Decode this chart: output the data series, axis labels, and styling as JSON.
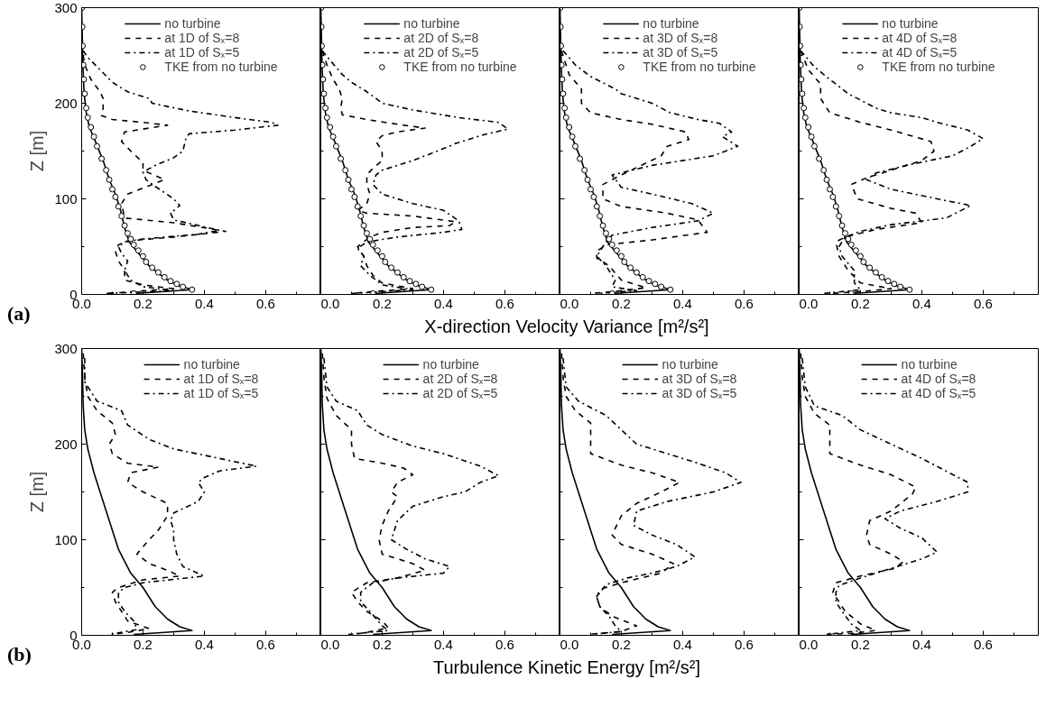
{
  "chart_data": [
    {
      "type": "line",
      "ylabel": "Z [m]",
      "annotations": [
        "(a)"
      ],
      "xlim": [
        0,
        0.78
      ],
      "ylim": [
        0,
        300
      ],
      "xticks": [
        {
          "value": 0,
          "label": "0.0"
        },
        {
          "value": 0.2,
          "label": "0.2"
        },
        {
          "value": 0.4,
          "label": "0.4"
        },
        {
          "value": 0.6,
          "label": "0.6"
        }
      ],
      "yticks": [
        0,
        100,
        200,
        300
      ],
      "legend": "top",
      "series": [
        {
          "name": "no turbine",
          "color": "#000000",
          "line_style": "solid",
          "x": [
            0.17,
            0.36,
            0.31,
            0.27,
            0.22,
            0.18,
            0.155,
            0.14,
            0.125,
            0.11,
            0.09,
            0.07,
            0.045,
            0.025,
            0.015,
            0.008,
            0.004,
            0.002,
            0
          ],
          "values": [
            1,
            5,
            10,
            17,
            30,
            45,
            55,
            70,
            90,
            105,
            120,
            140,
            160,
            175,
            190,
            210,
            240,
            270,
            300
          ]
        },
        {
          "name": "at 1D of Sₓ=8",
          "color": "#000000",
          "line_style": "dashed",
          "x": [
            0.005,
            0.01,
            0.03,
            0.06,
            0.07,
            0.07,
            0.065,
            0.1,
            0.2,
            0.28,
            0.2,
            0.14,
            0.13,
            0.16,
            0.2,
            0.2,
            0.27,
            0.15,
            0.13,
            0.14,
            0.3,
            0.47,
            0.3,
            0.15,
            0.12,
            0.11,
            0.12,
            0.14,
            0.14,
            0.2,
            0.3,
            0.17,
            0.08
          ],
          "values": [
            250,
            240,
            225,
            212,
            205,
            195,
            187,
            183,
            180,
            177,
            173,
            170,
            160,
            150,
            138,
            130,
            120,
            105,
            95,
            80,
            75,
            66,
            60,
            56,
            52,
            45,
            35,
            25,
            15,
            10,
            6,
            3,
            1
          ]
        },
        {
          "name": "at 1D of Sₓ=5",
          "color": "#000000",
          "line_style": "dashdot",
          "x": [
            0.005,
            0.02,
            0.06,
            0.1,
            0.15,
            0.22,
            0.23,
            0.35,
            0.5,
            0.62,
            0.64,
            0.5,
            0.35,
            0.34,
            0.33,
            0.3,
            0.24,
            0.2,
            0.21,
            0.24,
            0.3,
            0.32,
            0.29,
            0.3,
            0.45,
            0.38,
            0.2,
            0.14,
            0.12,
            0.13,
            0.15,
            0.14,
            0.16,
            0.2,
            0.3,
            0.08
          ],
          "values": [
            255,
            248,
            235,
            222,
            212,
            205,
            200,
            192,
            185,
            180,
            177,
            172,
            168,
            163,
            150,
            143,
            135,
            128,
            120,
            113,
            100,
            93,
            85,
            78,
            67,
            63,
            58,
            55,
            50,
            43,
            35,
            25,
            15,
            8,
            4,
            1
          ]
        },
        {
          "name": "TKE from no turbine",
          "color": "#000000",
          "type": "scatter",
          "marker": "circle",
          "x": [
            0.17,
            0.36,
            0.33,
            0.31,
            0.29,
            0.27,
            0.25,
            0.23,
            0.21,
            0.2,
            0.185,
            0.17,
            0.16,
            0.15,
            0.14,
            0.13,
            0.12,
            0.11,
            0.1,
            0.09,
            0.08,
            0.065,
            0.05,
            0.04,
            0.03,
            0.02,
            0.015,
            0.01,
            0.007,
            0.005,
            0.003,
            0.002,
            0.001
          ],
          "values": [
            1,
            5,
            8,
            11,
            14,
            18,
            23,
            28,
            34,
            40,
            46,
            52,
            58,
            64,
            72,
            82,
            92,
            102,
            110,
            120,
            130,
            142,
            155,
            165,
            175,
            185,
            195,
            210,
            225,
            240,
            260,
            280,
            300
          ]
        }
      ]
    },
    {
      "type": "line",
      "tick_labels": "x",
      "xlim": [
        0,
        0.78
      ],
      "ylim": [
        0,
        300
      ],
      "xticks": [
        {
          "value": 0,
          "label": "0.0"
        },
        {
          "value": 0.2,
          "label": "0.2"
        },
        {
          "value": 0.4,
          "label": "0.4"
        },
        {
          "value": 0.6,
          "label": "0.6"
        }
      ],
      "yticks": [
        0,
        100,
        200,
        300
      ],
      "legend": "top",
      "series": [
        {
          "name": "no turbine",
          "color": "#000000",
          "line_style": "solid",
          "x": [
            0.17,
            0.36,
            0.31,
            0.27,
            0.22,
            0.18,
            0.155,
            0.14,
            0.125,
            0.11,
            0.09,
            0.07,
            0.045,
            0.025,
            0.015,
            0.008,
            0.004,
            0.002,
            0
          ],
          "values": [
            1,
            5,
            10,
            17,
            30,
            45,
            55,
            70,
            90,
            105,
            120,
            140,
            160,
            175,
            190,
            210,
            240,
            270,
            300
          ]
        },
        {
          "name": "at 2D of Sₓ=8",
          "color": "#000000",
          "line_style": "dashed",
          "x": [
            0.005,
            0.02,
            0.04,
            0.06,
            0.07,
            0.065,
            0.07,
            0.15,
            0.25,
            0.34,
            0.25,
            0.2,
            0.18,
            0.2,
            0.2,
            0.17,
            0.15,
            0.15,
            0.16,
            0.15,
            0.12,
            0.15,
            0.3,
            0.44,
            0.42,
            0.3,
            0.2,
            0.16,
            0.12,
            0.14,
            0.15,
            0.17,
            0.2,
            0.3,
            0.17,
            0.1
          ],
          "values": [
            255,
            240,
            225,
            215,
            205,
            195,
            188,
            183,
            178,
            174,
            170,
            166,
            160,
            150,
            140,
            132,
            125,
            115,
            105,
            95,
            88,
            85,
            82,
            76,
            72,
            70,
            65,
            60,
            50,
            40,
            30,
            20,
            12,
            6,
            3,
            1
          ]
        },
        {
          "name": "at 2D of Sₓ=5",
          "color": "#000000",
          "line_style": "dashdot",
          "x": [
            0.005,
            0.03,
            0.07,
            0.1,
            0.15,
            0.18,
            0.2,
            0.3,
            0.45,
            0.58,
            0.61,
            0.53,
            0.44,
            0.38,
            0.3,
            0.2,
            0.18,
            0.17,
            0.2,
            0.3,
            0.4,
            0.45,
            0.46,
            0.4,
            0.25,
            0.15,
            0.12,
            0.14,
            0.13,
            0.16,
            0.2,
            0.3,
            0.1
          ],
          "values": [
            255,
            245,
            230,
            222,
            212,
            205,
            200,
            193,
            185,
            180,
            173,
            167,
            158,
            150,
            140,
            130,
            125,
            115,
            105,
            95,
            88,
            77,
            68,
            65,
            60,
            55,
            48,
            40,
            30,
            20,
            10,
            5,
            1
          ]
        },
        {
          "name": "TKE from no turbine",
          "color": "#000000",
          "type": "scatter",
          "marker": "circle",
          "x": [
            0.17,
            0.36,
            0.33,
            0.31,
            0.29,
            0.27,
            0.25,
            0.23,
            0.21,
            0.2,
            0.185,
            0.17,
            0.16,
            0.15,
            0.14,
            0.13,
            0.12,
            0.11,
            0.1,
            0.09,
            0.08,
            0.065,
            0.05,
            0.04,
            0.03,
            0.02,
            0.015,
            0.01,
            0.007,
            0.005,
            0.003,
            0.002,
            0.001
          ],
          "values": [
            1,
            5,
            8,
            11,
            14,
            18,
            23,
            28,
            34,
            40,
            46,
            52,
            58,
            64,
            72,
            82,
            92,
            102,
            110,
            120,
            130,
            142,
            155,
            165,
            175,
            185,
            195,
            210,
            225,
            240,
            260,
            280,
            300
          ]
        }
      ]
    },
    {
      "type": "line",
      "xlabel": "X-direction Velocity Variance [m²/s²]",
      "tick_labels": "x",
      "xlim": [
        0,
        0.78
      ],
      "ylim": [
        0,
        300
      ],
      "xticks": [
        {
          "value": 0,
          "label": "0.0"
        },
        {
          "value": 0.2,
          "label": "0.2"
        },
        {
          "value": 0.4,
          "label": "0.4"
        },
        {
          "value": 0.6,
          "label": "0.6"
        }
      ],
      "yticks": [
        0,
        100,
        200,
        300
      ],
      "legend": "top",
      "series": [
        {
          "name": "no turbine",
          "color": "#000000",
          "line_style": "solid",
          "x": [
            0.17,
            0.36,
            0.31,
            0.27,
            0.22,
            0.18,
            0.155,
            0.14,
            0.125,
            0.11,
            0.09,
            0.07,
            0.045,
            0.025,
            0.015,
            0.008,
            0.004,
            0.002,
            0
          ],
          "values": [
            1,
            5,
            10,
            17,
            30,
            45,
            55,
            70,
            90,
            105,
            120,
            140,
            160,
            175,
            190,
            210,
            240,
            270,
            300
          ]
        },
        {
          "name": "at 3D of Sₓ=8",
          "color": "#000000",
          "line_style": "dashed",
          "x": [
            0.005,
            0.03,
            0.07,
            0.07,
            0.1,
            0.2,
            0.3,
            0.41,
            0.42,
            0.35,
            0.33,
            0.2,
            0.14,
            0.14,
            0.2,
            0.35,
            0.45,
            0.48,
            0.3,
            0.15,
            0.12,
            0.12,
            0.16,
            0.2,
            0.28,
            0.18,
            0.1
          ],
          "values": [
            255,
            230,
            215,
            200,
            190,
            183,
            178,
            170,
            162,
            155,
            145,
            125,
            115,
            100,
            92,
            85,
            78,
            65,
            57,
            52,
            45,
            38,
            30,
            15,
            7,
            3,
            1
          ]
        },
        {
          "name": "at 3D of Sₓ=5",
          "color": "#000000",
          "line_style": "dashdot",
          "x": [
            0.01,
            0.05,
            0.1,
            0.18,
            0.2,
            0.3,
            0.36,
            0.45,
            0.52,
            0.56,
            0.53,
            0.58,
            0.5,
            0.3,
            0.17,
            0.2,
            0.3,
            0.43,
            0.5,
            0.45,
            0.3,
            0.17,
            0.15,
            0.12,
            0.15,
            0.18,
            0.17,
            0.25,
            0.12
          ],
          "values": [
            255,
            240,
            228,
            215,
            210,
            200,
            190,
            183,
            179,
            170,
            165,
            155,
            145,
            135,
            125,
            112,
            105,
            95,
            85,
            77,
            70,
            62,
            55,
            40,
            30,
            15,
            8,
            4,
            1
          ]
        },
        {
          "name": "TKE from no turbine",
          "color": "#000000",
          "type": "scatter",
          "marker": "circle",
          "x": [
            0.17,
            0.36,
            0.33,
            0.31,
            0.29,
            0.27,
            0.25,
            0.23,
            0.21,
            0.2,
            0.185,
            0.17,
            0.16,
            0.15,
            0.14,
            0.13,
            0.12,
            0.11,
            0.1,
            0.09,
            0.08,
            0.065,
            0.05,
            0.04,
            0.03,
            0.02,
            0.015,
            0.01,
            0.007,
            0.005,
            0.003,
            0.002,
            0.001
          ],
          "values": [
            1,
            5,
            8,
            11,
            14,
            18,
            23,
            28,
            34,
            40,
            46,
            52,
            58,
            64,
            72,
            82,
            92,
            102,
            110,
            120,
            130,
            142,
            155,
            165,
            175,
            185,
            195,
            210,
            225,
            240,
            260,
            280,
            300
          ]
        }
      ]
    },
    {
      "type": "line",
      "tick_labels": "x",
      "xlim": [
        0,
        0.78
      ],
      "ylim": [
        0,
        300
      ],
      "xticks": [
        {
          "value": 0,
          "label": "0.0"
        },
        {
          "value": 0.2,
          "label": "0.2"
        },
        {
          "value": 0.4,
          "label": "0.4"
        },
        {
          "value": 0.6,
          "label": "0.6"
        }
      ],
      "yticks": [
        0,
        100,
        200,
        300
      ],
      "legend": "top",
      "series": [
        {
          "name": "no turbine",
          "color": "#000000",
          "line_style": "solid",
          "x": [
            0.17,
            0.36,
            0.31,
            0.27,
            0.22,
            0.18,
            0.155,
            0.14,
            0.125,
            0.11,
            0.09,
            0.07,
            0.045,
            0.025,
            0.015,
            0.008,
            0.004,
            0.002,
            0
          ],
          "values": [
            1,
            5,
            10,
            17,
            30,
            45,
            55,
            70,
            90,
            105,
            120,
            140,
            160,
            175,
            190,
            210,
            240,
            270,
            300
          ]
        },
        {
          "name": "at 4D of Sₓ=8",
          "color": "#000000",
          "line_style": "dashed",
          "x": [
            0.005,
            0.03,
            0.07,
            0.07,
            0.1,
            0.2,
            0.3,
            0.43,
            0.44,
            0.4,
            0.3,
            0.22,
            0.17,
            0.19,
            0.3,
            0.38,
            0.4,
            0.25,
            0.15,
            0.12,
            0.13,
            0.16,
            0.2,
            0.3,
            0.2,
            0.1
          ],
          "values": [
            255,
            235,
            220,
            205,
            190,
            180,
            172,
            160,
            150,
            140,
            130,
            122,
            115,
            100,
            90,
            85,
            75,
            68,
            60,
            55,
            40,
            25,
            12,
            6,
            3,
            1
          ]
        },
        {
          "name": "at 4D of Sₓ=5",
          "color": "#000000",
          "line_style": "dashdot",
          "x": [
            0.005,
            0.05,
            0.1,
            0.16,
            0.25,
            0.3,
            0.4,
            0.45,
            0.55,
            0.6,
            0.56,
            0.5,
            0.35,
            0.25,
            0.22,
            0.3,
            0.45,
            0.56,
            0.48,
            0.3,
            0.2,
            0.15,
            0.13,
            0.14,
            0.18,
            0.18,
            0.2,
            0.08
          ],
          "values": [
            255,
            238,
            225,
            210,
            195,
            190,
            185,
            180,
            172,
            163,
            155,
            145,
            135,
            127,
            120,
            110,
            100,
            93,
            80,
            73,
            66,
            60,
            50,
            40,
            25,
            12,
            5,
            1
          ]
        },
        {
          "name": "TKE from no turbine",
          "color": "#000000",
          "type": "scatter",
          "marker": "circle",
          "x": [
            0.17,
            0.36,
            0.33,
            0.31,
            0.29,
            0.27,
            0.25,
            0.23,
            0.21,
            0.2,
            0.185,
            0.17,
            0.16,
            0.15,
            0.14,
            0.13,
            0.12,
            0.11,
            0.1,
            0.09,
            0.08,
            0.065,
            0.05,
            0.04,
            0.03,
            0.02,
            0.015,
            0.01,
            0.007,
            0.005,
            0.003,
            0.002,
            0.001
          ],
          "values": [
            1,
            5,
            8,
            11,
            14,
            18,
            23,
            28,
            34,
            40,
            46,
            52,
            58,
            64,
            72,
            82,
            92,
            102,
            110,
            120,
            130,
            142,
            155,
            165,
            175,
            185,
            195,
            210,
            225,
            240,
            260,
            280,
            300
          ]
        }
      ]
    },
    {
      "type": "line",
      "ylabel": "Z [m]",
      "annotations": [
        "(b)"
      ],
      "xlim": [
        0,
        0.78
      ],
      "ylim": [
        0,
        300
      ],
      "xticks": [
        {
          "value": 0,
          "label": "0.0"
        },
        {
          "value": 0.2,
          "label": "0.2"
        },
        {
          "value": 0.4,
          "label": "0.4"
        },
        {
          "value": 0.6,
          "label": "0.6"
        }
      ],
      "yticks": [
        0,
        100,
        200,
        300
      ],
      "legend": "top",
      "series": [
        {
          "name": "no turbine",
          "color": "#000000",
          "line_style": "solid",
          "x": [
            0.17,
            0.36,
            0.32,
            0.28,
            0.24,
            0.2,
            0.16,
            0.12,
            0.1,
            0.08,
            0.06,
            0.04,
            0.02,
            0.01,
            0.005,
            0.003,
            0
          ],
          "values": [
            1,
            5,
            9,
            17,
            30,
            50,
            65,
            90,
            110,
            130,
            150,
            170,
            195,
            215,
            240,
            270,
            300
          ]
        },
        {
          "name": "at 1D of Sₓ=8",
          "color": "#000000",
          "line_style": "dashed",
          "x": [
            0.005,
            0.01,
            0.02,
            0.05,
            0.1,
            0.11,
            0.09,
            0.1,
            0.15,
            0.25,
            0.16,
            0.15,
            0.2,
            0.28,
            0.28,
            0.25,
            0.22,
            0.18,
            0.22,
            0.28,
            0.32,
            0.2,
            0.12,
            0.1,
            0.11,
            0.13,
            0.15,
            0.22,
            0.15,
            0.1
          ],
          "values": [
            295,
            270,
            250,
            235,
            222,
            210,
            200,
            190,
            180,
            176,
            170,
            160,
            150,
            138,
            125,
            110,
            100,
            85,
            75,
            68,
            62,
            58,
            50,
            45,
            35,
            25,
            15,
            7,
            3,
            1
          ]
        },
        {
          "name": "at 1D of Sₓ=5",
          "color": "#000000",
          "line_style": "dashdot",
          "x": [
            0.01,
            0.01,
            0.05,
            0.13,
            0.15,
            0.22,
            0.3,
            0.45,
            0.57,
            0.45,
            0.4,
            0.38,
            0.4,
            0.38,
            0.3,
            0.29,
            0.3,
            0.3,
            0.31,
            0.33,
            0.4,
            0.2,
            0.14,
            0.12,
            0.12,
            0.14,
            0.17,
            0.18,
            0.09
          ],
          "values": [
            290,
            265,
            245,
            235,
            220,
            205,
            195,
            185,
            177,
            172,
            165,
            160,
            150,
            140,
            128,
            120,
            110,
            100,
            85,
            72,
            62,
            55,
            50,
            45,
            35,
            25,
            15,
            6,
            1
          ]
        }
      ]
    },
    {
      "type": "line",
      "tick_labels": "x",
      "xlim": [
        0,
        0.78
      ],
      "ylim": [
        0,
        300
      ],
      "xticks": [
        {
          "value": 0,
          "label": "0.0"
        },
        {
          "value": 0.2,
          "label": "0.2"
        },
        {
          "value": 0.4,
          "label": "0.4"
        },
        {
          "value": 0.6,
          "label": "0.6"
        }
      ],
      "yticks": [
        0,
        100,
        200,
        300
      ],
      "legend": "top",
      "series": [
        {
          "name": "no turbine",
          "color": "#000000",
          "line_style": "solid",
          "x": [
            0.17,
            0.36,
            0.32,
            0.28,
            0.24,
            0.2,
            0.16,
            0.12,
            0.1,
            0.08,
            0.06,
            0.04,
            0.02,
            0.01,
            0.005,
            0.003,
            0
          ],
          "values": [
            1,
            5,
            9,
            17,
            30,
            50,
            65,
            90,
            110,
            130,
            150,
            170,
            195,
            215,
            240,
            270,
            300
          ]
        },
        {
          "name": "at 2D of Sₓ=8",
          "color": "#000000",
          "line_style": "dashed",
          "x": [
            0.005,
            0.01,
            0.02,
            0.05,
            0.1,
            0.1,
            0.11,
            0.2,
            0.27,
            0.3,
            0.25,
            0.23,
            0.25,
            0.22,
            0.2,
            0.19,
            0.2,
            0.3,
            0.34,
            0.25,
            0.15,
            0.1,
            0.12,
            0.15,
            0.2,
            0.22,
            0.15,
            0.1
          ],
          "values": [
            295,
            270,
            248,
            230,
            215,
            200,
            185,
            180,
            175,
            168,
            160,
            150,
            145,
            130,
            115,
            100,
            85,
            75,
            68,
            60,
            55,
            45,
            35,
            25,
            15,
            8,
            3,
            1
          ]
        },
        {
          "name": "at 2D of Sₓ=5",
          "color": "#000000",
          "line_style": "dashdot",
          "x": [
            0.01,
            0.02,
            0.05,
            0.12,
            0.15,
            0.2,
            0.3,
            0.4,
            0.52,
            0.58,
            0.52,
            0.47,
            0.4,
            0.3,
            0.25,
            0.24,
            0.23,
            0.28,
            0.34,
            0.42,
            0.4,
            0.25,
            0.17,
            0.13,
            0.13,
            0.16,
            0.2,
            0.22,
            0.09
          ],
          "values": [
            290,
            260,
            245,
            235,
            220,
            210,
            198,
            190,
            177,
            167,
            160,
            150,
            145,
            135,
            120,
            110,
            100,
            90,
            80,
            72,
            65,
            60,
            55,
            45,
            35,
            25,
            10,
            5,
            1
          ]
        }
      ]
    },
    {
      "type": "line",
      "xlabel": "Turbulence Kinetic Energy [m²/s²]",
      "tick_labels": "x",
      "xlim": [
        0,
        0.78
      ],
      "ylim": [
        0,
        300
      ],
      "xticks": [
        {
          "value": 0,
          "label": "0.0"
        },
        {
          "value": 0.2,
          "label": "0.2"
        },
        {
          "value": 0.4,
          "label": "0.4"
        },
        {
          "value": 0.6,
          "label": "0.6"
        }
      ],
      "yticks": [
        0,
        100,
        200,
        300
      ],
      "legend": "top",
      "series": [
        {
          "name": "no turbine",
          "color": "#000000",
          "line_style": "solid",
          "x": [
            0.17,
            0.36,
            0.32,
            0.28,
            0.24,
            0.2,
            0.16,
            0.12,
            0.1,
            0.08,
            0.06,
            0.04,
            0.02,
            0.01,
            0.005,
            0.003,
            0
          ],
          "values": [
            1,
            5,
            9,
            17,
            30,
            50,
            65,
            90,
            110,
            130,
            150,
            170,
            195,
            215,
            240,
            270,
            300
          ]
        },
        {
          "name": "at 3D of Sₓ=8",
          "color": "#000000",
          "line_style": "dashed",
          "x": [
            0.005,
            0.01,
            0.02,
            0.05,
            0.1,
            0.1,
            0.1,
            0.2,
            0.3,
            0.39,
            0.33,
            0.25,
            0.2,
            0.17,
            0.2,
            0.3,
            0.37,
            0.33,
            0.2,
            0.13,
            0.12,
            0.13,
            0.17,
            0.25,
            0.2,
            0.09
          ],
          "values": [
            295,
            270,
            250,
            235,
            222,
            205,
            190,
            178,
            170,
            160,
            150,
            138,
            125,
            105,
            95,
            85,
            75,
            65,
            55,
            48,
            40,
            30,
            20,
            10,
            4,
            1
          ]
        },
        {
          "name": "at 3D of Sₓ=5",
          "color": "#000000",
          "line_style": "dashdot",
          "x": [
            0.01,
            0.02,
            0.06,
            0.15,
            0.2,
            0.25,
            0.35,
            0.45,
            0.54,
            0.59,
            0.5,
            0.35,
            0.25,
            0.24,
            0.3,
            0.38,
            0.44,
            0.38,
            0.3,
            0.22,
            0.15,
            0.12,
            0.13,
            0.16,
            0.18,
            0.2,
            0.1
          ],
          "values": [
            290,
            260,
            245,
            230,
            215,
            200,
            190,
            180,
            170,
            160,
            150,
            140,
            130,
            115,
            105,
            95,
            82,
            72,
            65,
            60,
            53,
            40,
            30,
            20,
            10,
            4,
            1
          ]
        }
      ]
    },
    {
      "type": "line",
      "tick_labels": "x",
      "xlim": [
        0,
        0.78
      ],
      "ylim": [
        0,
        300
      ],
      "xticks": [
        {
          "value": 0,
          "label": "0.0"
        },
        {
          "value": 0.2,
          "label": "0.2"
        },
        {
          "value": 0.4,
          "label": "0.4"
        },
        {
          "value": 0.6,
          "label": "0.6"
        }
      ],
      "yticks": [
        0,
        100,
        200,
        300
      ],
      "legend": "top",
      "series": [
        {
          "name": "no turbine",
          "color": "#000000",
          "line_style": "solid",
          "x": [
            0.17,
            0.36,
            0.32,
            0.28,
            0.24,
            0.2,
            0.16,
            0.12,
            0.1,
            0.08,
            0.06,
            0.04,
            0.02,
            0.01,
            0.005,
            0.003,
            0
          ],
          "values": [
            1,
            5,
            9,
            17,
            30,
            50,
            65,
            90,
            110,
            130,
            150,
            170,
            195,
            215,
            240,
            270,
            300
          ]
        },
        {
          "name": "at 4D of Sₓ=8",
          "color": "#000000",
          "line_style": "dashed",
          "x": [
            0.005,
            0.01,
            0.02,
            0.05,
            0.1,
            0.1,
            0.1,
            0.2,
            0.3,
            0.38,
            0.37,
            0.3,
            0.23,
            0.22,
            0.23,
            0.3,
            0.34,
            0.31,
            0.2,
            0.12,
            0.11,
            0.13,
            0.15,
            0.2,
            0.25,
            0.17,
            0.09
          ],
          "values": [
            295,
            270,
            250,
            232,
            220,
            205,
            190,
            178,
            168,
            155,
            148,
            130,
            120,
            105,
            95,
            85,
            77,
            70,
            62,
            55,
            45,
            35,
            25,
            12,
            5,
            2,
            1
          ]
        },
        {
          "name": "at 4D of Sₓ=5",
          "color": "#000000",
          "line_style": "dashdot",
          "x": [
            0.01,
            0.02,
            0.05,
            0.14,
            0.2,
            0.3,
            0.4,
            0.52,
            0.55,
            0.55,
            0.45,
            0.33,
            0.28,
            0.33,
            0.4,
            0.45,
            0.4,
            0.3,
            0.2,
            0.13,
            0.12,
            0.12,
            0.14,
            0.17,
            0.2,
            0.09
          ],
          "values": [
            290,
            260,
            240,
            230,
            215,
            200,
            185,
            165,
            160,
            150,
            140,
            130,
            122,
            112,
            102,
            87,
            80,
            70,
            60,
            52,
            45,
            35,
            25,
            12,
            5,
            1
          ]
        }
      ]
    }
  ]
}
